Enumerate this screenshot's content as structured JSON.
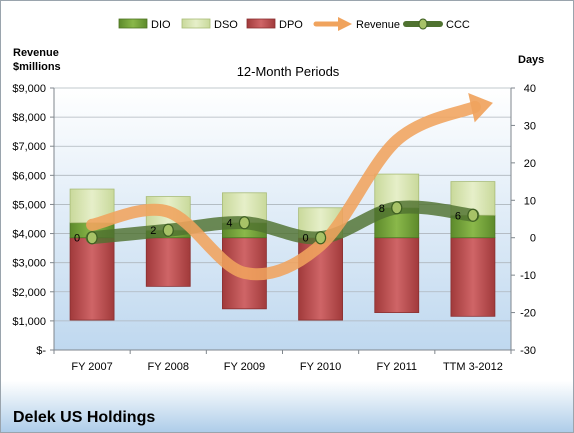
{
  "chart_data": {
    "type": "bar",
    "title": "12-Month Periods",
    "company": "Delek US Holdings",
    "categories": [
      "FY 2007",
      "FY 2008",
      "FY 2009",
      "FY 2010",
      "FY 2011",
      "TTM 3-2012"
    ],
    "left_axis": {
      "label_line1": "Revenue",
      "label_line2": "$millions",
      "ylim": [
        0,
        9000
      ],
      "ticks": [
        {
          "value": 0,
          "label": "$-"
        },
        {
          "value": 1000,
          "label": "$1,000"
        },
        {
          "value": 2000,
          "label": "$2,000"
        },
        {
          "value": 3000,
          "label": "$3,000"
        },
        {
          "value": 4000,
          "label": "$4,000"
        },
        {
          "value": 5000,
          "label": "$5,000"
        },
        {
          "value": 6000,
          "label": "$6,000"
        },
        {
          "value": 7000,
          "label": "$7,000"
        },
        {
          "value": 8000,
          "label": "$8,000"
        },
        {
          "value": 9000,
          "label": "$9,000"
        }
      ]
    },
    "right_axis": {
      "label": "Days",
      "ylim": [
        -30,
        40
      ],
      "ticks": [
        {
          "value": -30,
          "label": "-30"
        },
        {
          "value": -20,
          "label": "-20"
        },
        {
          "value": -10,
          "label": "-10"
        },
        {
          "value": 0,
          "label": "0"
        },
        {
          "value": 10,
          "label": "10"
        },
        {
          "value": 20,
          "label": "20"
        },
        {
          "value": 30,
          "label": "30"
        },
        {
          "value": 40,
          "label": "40"
        }
      ]
    },
    "grid": true,
    "legend_position": "top",
    "series": [
      {
        "name": "DIO",
        "axis": "right",
        "kind": "stacked-bar",
        "color": "#76a037",
        "values": [
          4,
          2,
          4,
          0,
          8,
          6
        ]
      },
      {
        "name": "DSO",
        "axis": "right",
        "kind": "stacked-bar",
        "color": "#d7e4b0",
        "values": [
          9,
          9,
          8,
          8,
          9,
          9
        ]
      },
      {
        "name": "DPO",
        "axis": "right",
        "kind": "stacked-bar",
        "color": "#b94a4b",
        "values": [
          -22,
          -13,
          -19,
          -22,
          -20,
          -21
        ]
      },
      {
        "name": "Revenue",
        "axis": "left",
        "kind": "line-arrow",
        "color": "#f0a35d",
        "values": [
          4300,
          4750,
          2650,
          3600,
          7200,
          8350
        ]
      },
      {
        "name": "CCC",
        "axis": "right",
        "kind": "line-markers",
        "color": "#5a7a35",
        "values": [
          0,
          2,
          4,
          0,
          8,
          6
        ],
        "labels": [
          "0",
          "2",
          "4",
          "0",
          "8",
          "6"
        ]
      }
    ]
  }
}
